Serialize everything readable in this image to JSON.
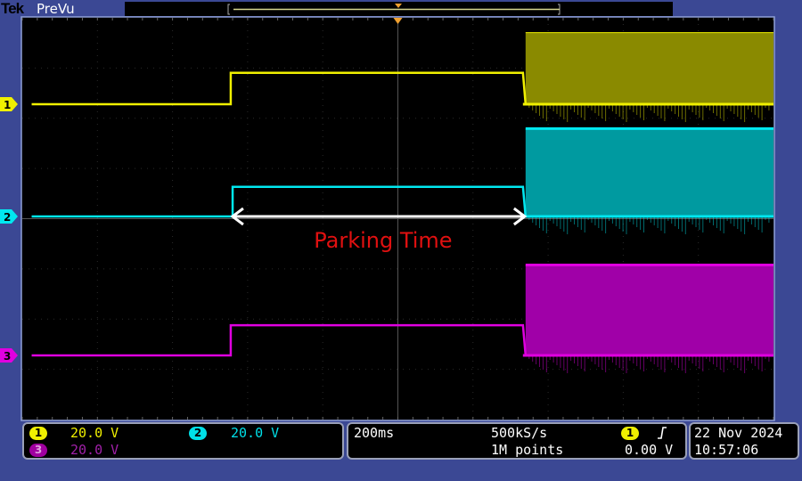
{
  "header": {
    "brand": "Tek",
    "mode": "PreVu"
  },
  "colors": {
    "ch1": "#f0f000",
    "ch2": "#00e8f0",
    "ch3": "#e000e0",
    "ch1_fill": "#8a8a00",
    "ch2_fill": "#009aa0",
    "ch3_fill": "#a000a8",
    "annotation": "#e01010",
    "background": "#3b4894"
  },
  "channels": [
    {
      "id": "1",
      "scale": "20.0 V"
    },
    {
      "id": "2",
      "scale": "20.0 V"
    },
    {
      "id": "3",
      "scale": "20.0 V"
    }
  ],
  "timebase": {
    "scale": "200ms",
    "sample_rate": "500kS/s",
    "record_length": "1M points"
  },
  "trigger": {
    "source": "1",
    "slope_icon": "rising-edge-icon",
    "level": "0.00 V"
  },
  "datetime": {
    "date": "22 Nov 2024",
    "time": "10:57:06"
  },
  "chart_data": {
    "type": "line",
    "xlabel": "",
    "ylabel": "",
    "x_units": "ms",
    "y_units": "V",
    "xlim": [
      -1000,
      1000
    ],
    "x_div": 200,
    "y_div": 20,
    "grid": true,
    "annotation": {
      "text": "Parking Time",
      "from_ms": -445,
      "to_ms": 333
    },
    "series": [
      {
        "channel": "1",
        "segments": [
          {
            "t": [
              -975,
              -445
            ],
            "v": 0
          },
          {
            "t": [
              -445,
              333
            ],
            "v": 12.5
          }
        ],
        "burst": {
          "t": [
            340,
            1000
          ],
          "min": 0,
          "max": 28.5
        }
      },
      {
        "channel": "2",
        "segments": [
          {
            "t": [
              -975,
              -440
            ],
            "v": 0
          },
          {
            "t": [
              -440,
              333
            ],
            "v": 11.8
          }
        ],
        "burst": {
          "t": [
            340,
            1000
          ],
          "min": 0,
          "max": 35
        }
      },
      {
        "channel": "3",
        "segments": [
          {
            "t": [
              -975,
              -445
            ],
            "v": 0
          },
          {
            "t": [
              -445,
              333
            ],
            "v": 12
          }
        ],
        "burst": {
          "t": [
            340,
            1000
          ],
          "min": 0,
          "max": 36
        }
      }
    ]
  }
}
